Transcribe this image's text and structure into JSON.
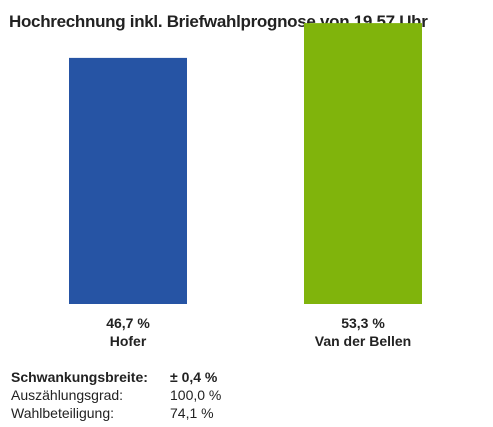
{
  "chart_data": {
    "type": "bar",
    "title": "Hochrechnung inkl. Briefwahlprognose von 19.57 Uhr",
    "categories": [
      "Hofer",
      "Van der Bellen"
    ],
    "values": [
      46.7,
      53.3
    ],
    "value_labels": [
      "46,7 %",
      "53,3 %"
    ],
    "colors": [
      "#2654a4",
      "#80b40c"
    ],
    "xlabel": "",
    "ylabel": "",
    "ylim": [
      0,
      55
    ],
    "grid": false
  },
  "stats": [
    {
      "label": "Schwankungsbreite:",
      "value": "± 0,4 %",
      "emphasis": true
    },
    {
      "label": "Auszählungsgrad:",
      "value": "100,0 %",
      "emphasis": false
    },
    {
      "label": "Wahlbeteiligung:",
      "value": "74,1 %",
      "emphasis": false
    }
  ]
}
